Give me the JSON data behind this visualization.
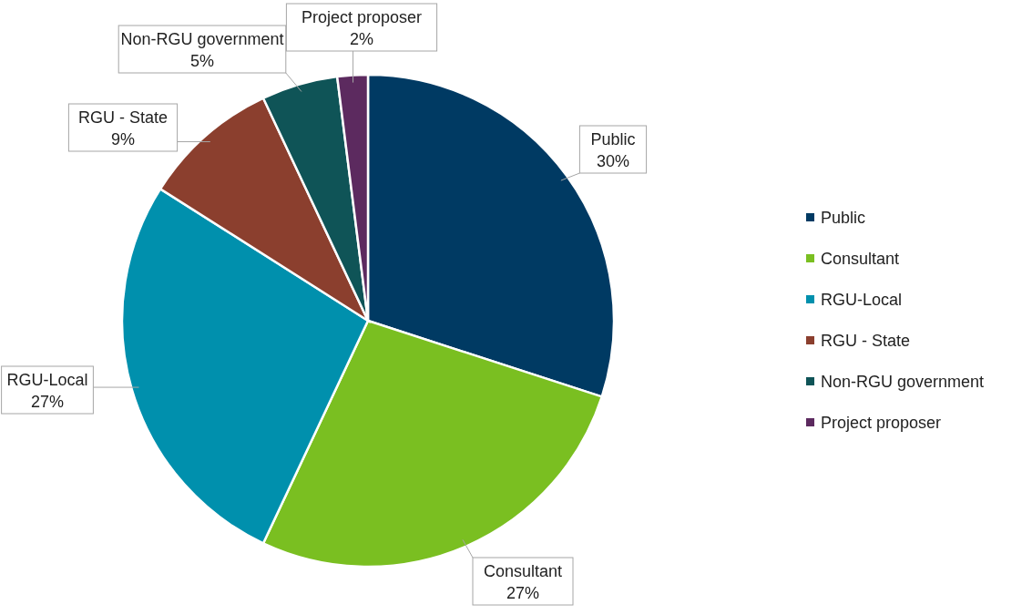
{
  "chart_data": {
    "type": "pie",
    "categories": [
      "Public",
      "Consultant",
      "RGU-Local",
      "RGU - State",
      "Non-RGU government",
      "Project proposer"
    ],
    "values": [
      30,
      27,
      27,
      9,
      5,
      2
    ],
    "colors": [
      "#003a63",
      "#7abf21",
      "#0090ad",
      "#8b3f2e",
      "#0f5457",
      "#5c2a5f"
    ],
    "value_labels": [
      "30%",
      "27%",
      "27%",
      "9%",
      "5%",
      "2%"
    ],
    "legend": "right"
  }
}
